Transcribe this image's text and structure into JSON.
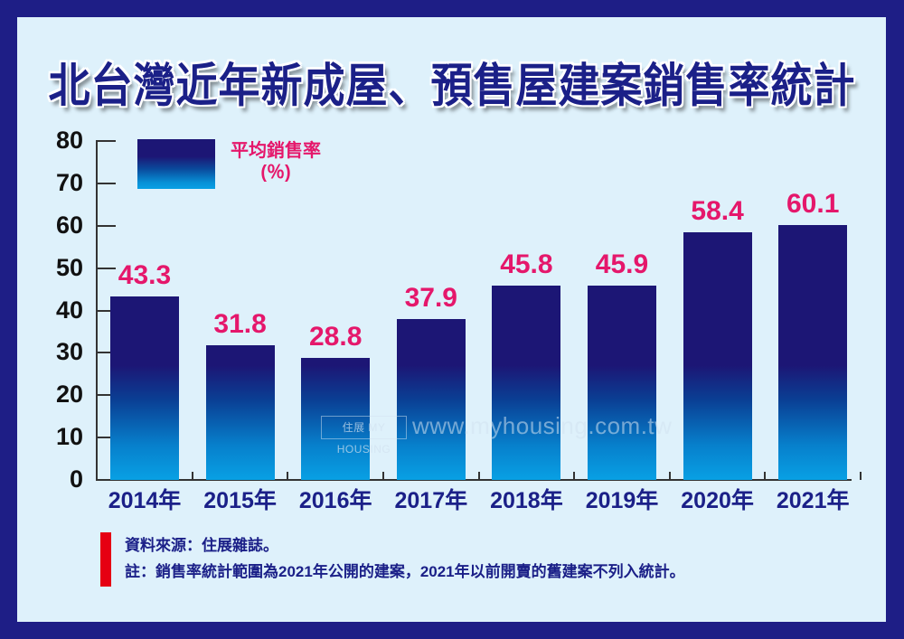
{
  "title": "北台灣近年新成屋、預售屋建案銷售率統計",
  "legend": {
    "label_line1": "平均銷售率",
    "label_line2": "(％)"
  },
  "y_axis": {
    "ticks": [
      "80",
      "70",
      "60",
      "50",
      "40",
      "30",
      "20",
      "10",
      "0"
    ]
  },
  "bars": [
    {
      "year": "2014年",
      "value": "43.3"
    },
    {
      "year": "2015年",
      "value": "31.8"
    },
    {
      "year": "2016年",
      "value": "28.8"
    },
    {
      "year": "2017年",
      "value": "37.9"
    },
    {
      "year": "2018年",
      "value": "45.8"
    },
    {
      "year": "2019年",
      "value": "45.9"
    },
    {
      "year": "2020年",
      "value": "58.4"
    },
    {
      "year": "2021年",
      "value": "60.1"
    }
  ],
  "watermark": {
    "logo": "住展 MY HOUSING",
    "url": "www.myhousing.com.tw"
  },
  "notes": {
    "source": "資料來源：住展雜誌。",
    "remark": "註：銷售率統計範圍為2021年公開的建案，2021年以前開賣的舊建案不列入統計。"
  },
  "colors": {
    "frame": "#1e1e86",
    "panel": "#def1fb",
    "bar_top": "#1c1675",
    "bar_bottom": "#08a0e4",
    "value_label": "#e5176b",
    "title": "#1b2088",
    "note_marker": "#e60012"
  },
  "chart_data": {
    "type": "bar",
    "title": "北台灣近年新成屋、預售屋建案銷售率統計",
    "categories": [
      "2014年",
      "2015年",
      "2016年",
      "2017年",
      "2018年",
      "2019年",
      "2020年",
      "2021年"
    ],
    "series": [
      {
        "name": "平均銷售率(%)",
        "values": [
          43.3,
          31.8,
          28.8,
          37.9,
          45.8,
          45.9,
          58.4,
          60.1
        ]
      }
    ],
    "xlabel": "",
    "ylabel": "",
    "ylim": [
      0,
      80
    ],
    "yticks": [
      0,
      10,
      20,
      30,
      40,
      50,
      60,
      70,
      80
    ],
    "grid": false,
    "legend_position": "top-left",
    "data_labels": true,
    "source": "資料來源：住展雜誌。",
    "note": "註：銷售率統計範圍為2021年公開的建案，2021年以前開賣的舊建案不列入統計。"
  }
}
